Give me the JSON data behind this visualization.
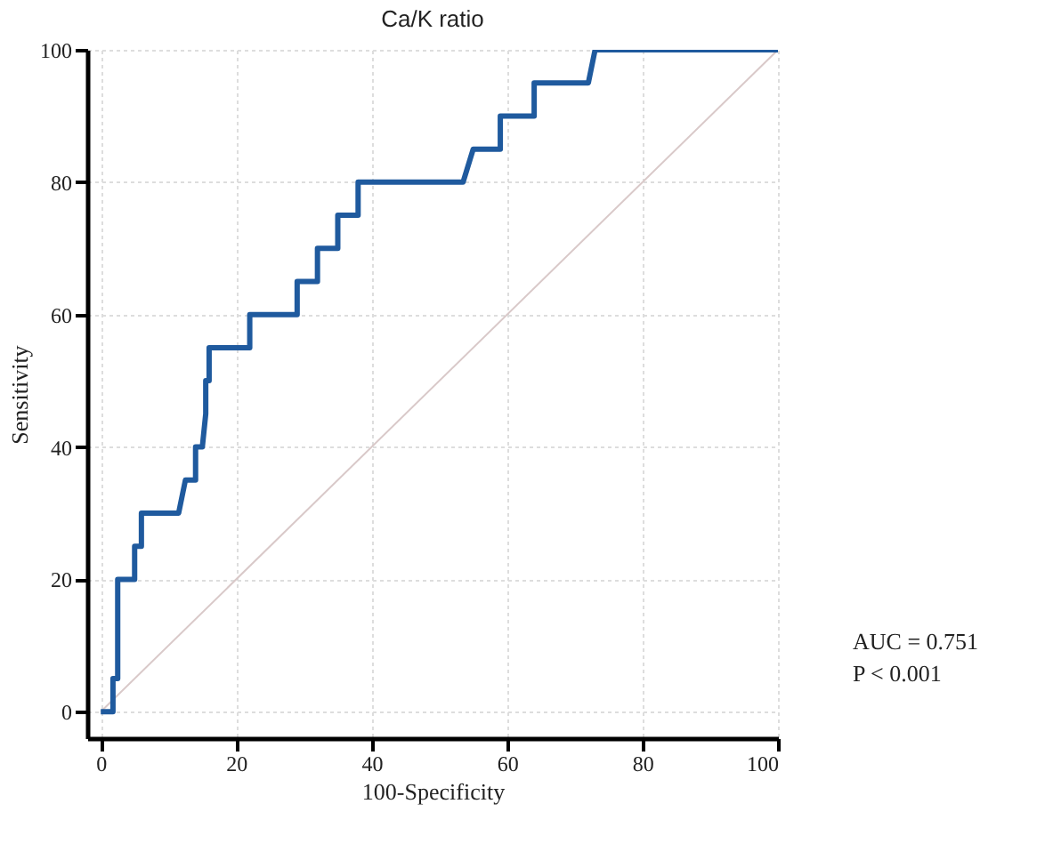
{
  "chart_data": {
    "type": "line",
    "title": "Ca/K ratio",
    "xlabel": "100-Specificity",
    "ylabel": "Sensitivity",
    "xlim": [
      -2,
      100
    ],
    "ylim": [
      -4,
      100
    ],
    "xticks": [
      0,
      20,
      40,
      60,
      80,
      100
    ],
    "yticks": [
      0,
      20,
      40,
      60,
      80,
      100
    ],
    "grid": true,
    "marker": "none",
    "line_style": "solid",
    "annotations": [
      "AUC = 0.751",
      "P < 0.001"
    ],
    "series": [
      {
        "color": "#1f5a9e",
        "x": [
          0,
          1.8,
          1.8,
          2.5,
          2.5,
          5,
          5,
          6,
          6,
          11.5,
          12.5,
          14,
          14,
          15,
          15.5,
          15.5,
          16,
          16,
          22,
          22,
          29,
          29,
          32,
          32,
          35,
          35,
          38,
          38,
          53.5,
          55,
          59,
          59,
          64,
          64,
          72,
          73,
          100
        ],
        "values": [
          0,
          0,
          5,
          5,
          20,
          20,
          25,
          25,
          30,
          30,
          35,
          35,
          40,
          40,
          45,
          50,
          50,
          55,
          55,
          60,
          60,
          65,
          65,
          70,
          70,
          75,
          75,
          80,
          80,
          85,
          85,
          90,
          90,
          95,
          95,
          100,
          100
        ]
      },
      {
        "type": "line",
        "color": "#d9c9c9",
        "x": [
          0,
          100
        ],
        "values": [
          0,
          100
        ]
      }
    ]
  }
}
